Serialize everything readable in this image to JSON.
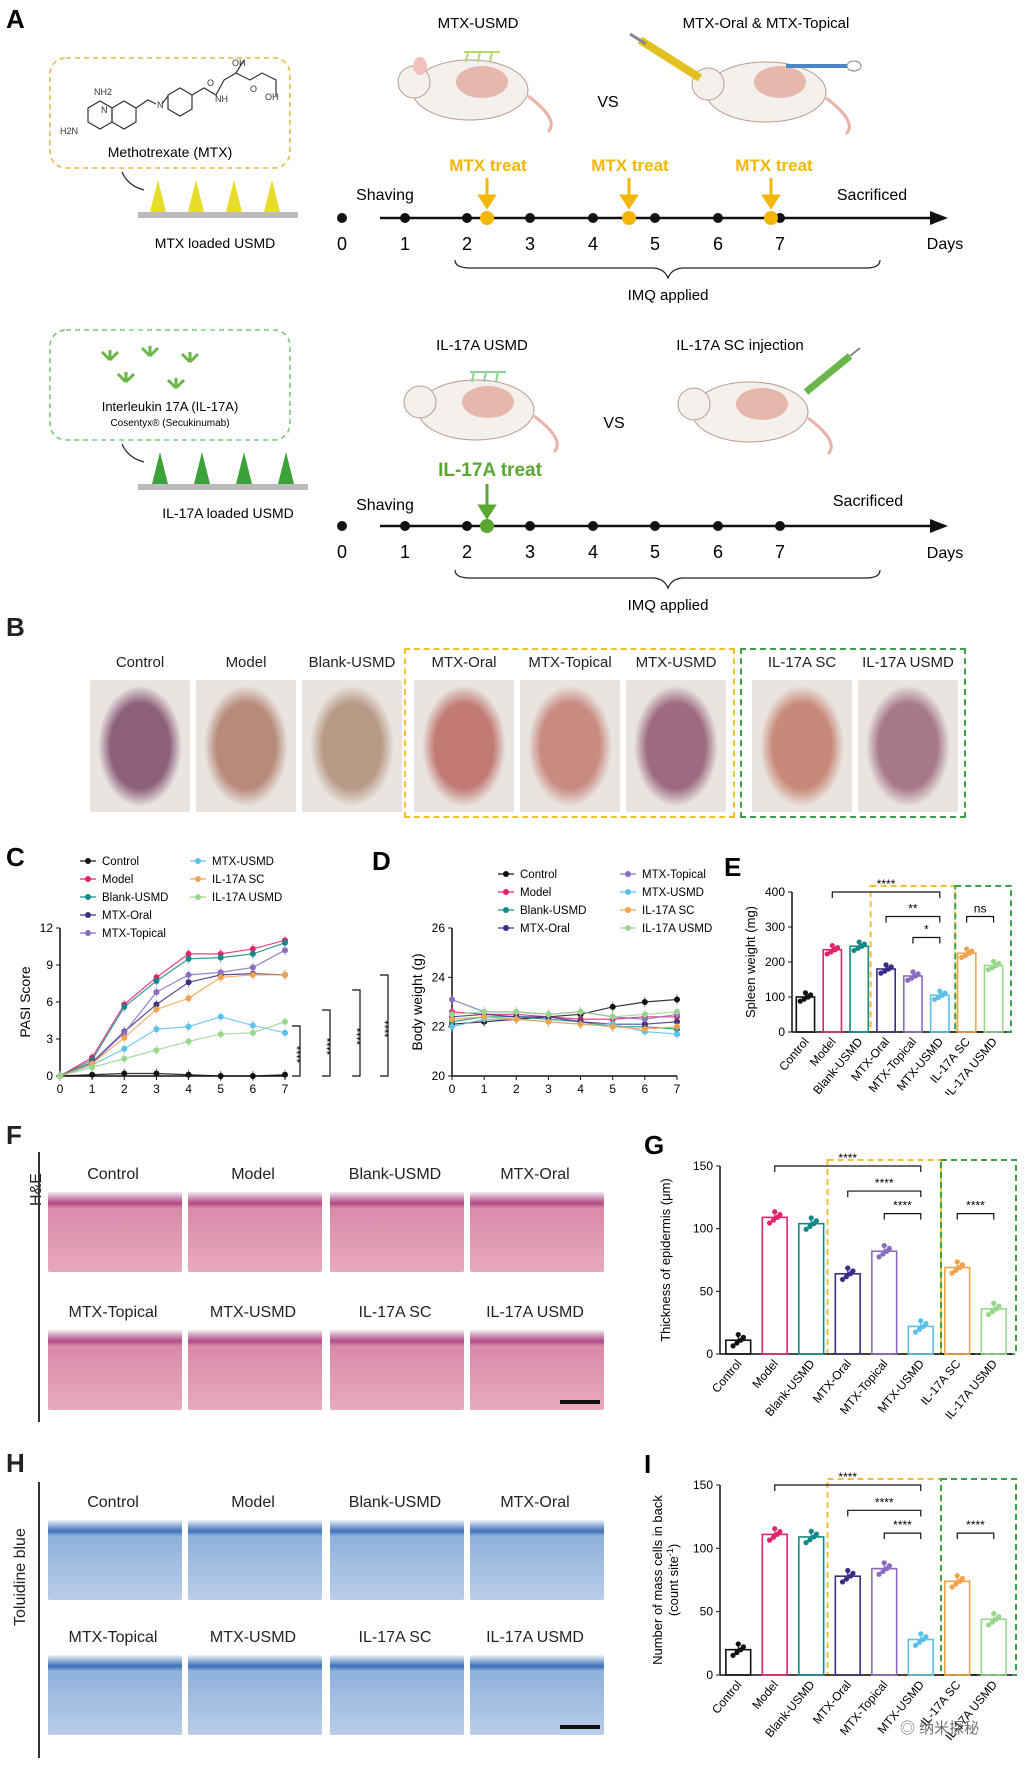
{
  "panels": {
    "A": "A",
    "B": "B",
    "C": "C",
    "D": "D",
    "E": "E",
    "F": "F",
    "G": "G",
    "H": "H",
    "I": "I"
  },
  "panelA": {
    "mtx_box_label": "Methotrexate (MTX)",
    "mtx_usmd_label": "MTX loaded USMD",
    "mtx_usmd_title": "MTX-USMD",
    "vs": "VS",
    "mtx_oral_topical_title": "MTX-Oral & MTX-Topical",
    "mtx_treat": "MTX treat",
    "shaving": "Shaving",
    "sacrificed": "Sacrificed",
    "days": "Days",
    "imq": "IMQ applied",
    "day_ticks": [
      "0",
      "1",
      "2",
      "3",
      "4",
      "5",
      "6",
      "7"
    ],
    "il17_box_label": "Interleukin 17A (IL-17A)",
    "il17_box_sub": "Cosentyx® (Secukinumab)",
    "il17_usmd_label": "IL-17A loaded USMD",
    "il17_usmd_title": "IL-17A USMD",
    "il17_sc_title": "IL-17A SC injection",
    "il17_treat": "IL-17A treat",
    "molecule_atoms": [
      "NH2",
      "N",
      "H2N",
      "O",
      "OH",
      "NH",
      "O",
      "N",
      "OH",
      "O"
    ]
  },
  "panelB": {
    "labels": [
      "Control",
      "Model",
      "Blank-USMD",
      "MTX-Oral",
      "MTX-Topical",
      "MTX-USMD",
      "IL-17A SC",
      "IL-17A USMD"
    ],
    "colors": {
      "yellow_box": "#f2c12e",
      "green_box": "#3aa34a"
    }
  },
  "colors": {
    "Control": "#111111",
    "Model": "#e2236c",
    "Blank-USMD": "#138a8a",
    "MTX-Oral": "#3d2c84",
    "MTX-Topical": "#8a6cc0",
    "MTX-USMD": "#59c1e8",
    "IL-17A SC": "#f2a24a",
    "IL-17A USMD": "#98d68c",
    "yellow": "#f2c12e",
    "green": "#3aa34a",
    "timeline_yellow": "#f2b705",
    "timeline_green": "#5aa832"
  },
  "legend_groups": [
    "Control",
    "Model",
    "Blank-USMD",
    "MTX-Oral",
    "MTX-Topical",
    "MTX-USMD",
    "IL-17A SC",
    "IL-17A USMD"
  ],
  "chart_data": [
    {
      "id": "C",
      "type": "line",
      "xlabel": "Day",
      "ylabel": "PASI Score",
      "x": [
        0,
        1,
        2,
        3,
        4,
        5,
        6,
        7
      ],
      "xticks": [
        "0",
        "1",
        "2",
        "3",
        "4",
        "5",
        "6",
        "7"
      ],
      "yticks": [
        "0",
        "3",
        "6",
        "9",
        "12"
      ],
      "ylim": [
        0,
        12
      ],
      "series": [
        {
          "name": "Control",
          "values": [
            0,
            0.1,
            0.2,
            0.2,
            0.1,
            0,
            0,
            0.1
          ]
        },
        {
          "name": "Model",
          "values": [
            0,
            1.5,
            5.8,
            8,
            9.9,
            9.9,
            10.3,
            11
          ]
        },
        {
          "name": "Blank-USMD",
          "values": [
            0,
            1.3,
            5.6,
            7.7,
            9.5,
            9.6,
            9.9,
            10.8
          ]
        },
        {
          "name": "MTX-Oral",
          "values": [
            0,
            1.1,
            3.6,
            5.8,
            7.6,
            8.2,
            8.3,
            8.2
          ]
        },
        {
          "name": "MTX-Topical",
          "values": [
            0,
            1.0,
            3.5,
            6.8,
            8.2,
            8.4,
            8.8,
            10.2
          ]
        },
        {
          "name": "MTX-USMD",
          "values": [
            0,
            0.9,
            2.2,
            3.8,
            4.0,
            4.8,
            4.1,
            3.5
          ]
        },
        {
          "name": "IL-17A SC",
          "values": [
            0,
            1.0,
            3.1,
            5.4,
            6.3,
            8.0,
            8.2,
            8.2
          ]
        },
        {
          "name": "IL-17A USMD",
          "values": [
            0,
            0.7,
            1.4,
            2.1,
            2.8,
            3.4,
            3.5,
            4.4
          ]
        }
      ],
      "significance": [
        "****",
        "****",
        "****",
        "****"
      ]
    },
    {
      "id": "D",
      "type": "line",
      "xlabel": "Day",
      "ylabel": "Body weight (g)",
      "x": [
        0,
        1,
        2,
        3,
        4,
        5,
        6,
        7
      ],
      "xticks": [
        "0",
        "1",
        "2",
        "3",
        "4",
        "5",
        "6",
        "7"
      ],
      "yticks": [
        "20",
        "22",
        "24",
        "26"
      ],
      "ylim": [
        20,
        26
      ],
      "series": [
        {
          "name": "Control",
          "values": [
            22.1,
            22.2,
            22.3,
            22.4,
            22.5,
            22.8,
            23.0,
            23.1
          ]
        },
        {
          "name": "Model",
          "values": [
            22.6,
            22.5,
            22.5,
            22.4,
            22.3,
            22.3,
            22.4,
            22.4
          ]
        },
        {
          "name": "Blank-USMD",
          "values": [
            22.2,
            22.4,
            22.4,
            22.3,
            22.2,
            22.0,
            22.0,
            21.9
          ]
        },
        {
          "name": "MTX-Oral",
          "values": [
            22.4,
            22.5,
            22.4,
            22.4,
            22.2,
            22.1,
            22.1,
            22.2
          ]
        },
        {
          "name": "MTX-Topical",
          "values": [
            23.1,
            22.6,
            22.6,
            22.5,
            22.6,
            22.4,
            22.3,
            22.5
          ]
        },
        {
          "name": "MTX-USMD",
          "values": [
            22.0,
            22.3,
            22.3,
            22.2,
            22.1,
            22.1,
            21.8,
            21.7
          ]
        },
        {
          "name": "IL-17A SC",
          "values": [
            22.3,
            22.4,
            22.3,
            22.2,
            22.1,
            22.0,
            21.9,
            22.0
          ]
        },
        {
          "name": "IL-17A USMD",
          "values": [
            22.5,
            22.6,
            22.6,
            22.5,
            22.6,
            22.4,
            22.5,
            22.6
          ]
        }
      ]
    },
    {
      "id": "E",
      "type": "bar",
      "ylabel": "Spleen weight (mg)",
      "categories": [
        "Control",
        "Model",
        "Blank-USMD",
        "MTX-Oral",
        "MTX-Topical",
        "MTX-USMD",
        "IL-17A SC",
        "IL-17A USMD"
      ],
      "values": [
        100,
        235,
        245,
        180,
        160,
        105,
        225,
        190
      ],
      "yticks": [
        "0",
        "100",
        "200",
        "300",
        "400"
      ],
      "ylim": [
        0,
        400
      ],
      "significance": [
        "****",
        "**",
        "*",
        "ns"
      ]
    },
    {
      "id": "G",
      "type": "bar",
      "ylabel": "Thickness of epidermis (μm)",
      "categories": [
        "Control",
        "Model",
        "Blank-USMD",
        "MTX-Oral",
        "MTX-Topical",
        "MTX-USMD",
        "IL-17A SC",
        "IL-17A USMD"
      ],
      "values": [
        11,
        109,
        104,
        64,
        82,
        22,
        69,
        36
      ],
      "yticks": [
        "0",
        "50",
        "100",
        "150"
      ],
      "ylim": [
        0,
        150
      ],
      "significance": [
        "****",
        "****",
        "****",
        "****"
      ]
    },
    {
      "id": "I",
      "type": "bar",
      "ylabel": "Number of mass cells in back",
      "ylabel2": "(count site",
      "ylabel2_sup": "-1",
      "ylabel2_end": ")",
      "categories": [
        "Control",
        "Model",
        "Blank-USMD",
        "MTX-Oral",
        "MTX-Topical",
        "MTX-USMD",
        "IL-17A SC",
        "IL-17A USMD"
      ],
      "tick_labels": [
        "Control",
        "Model",
        "Blank-USMD",
        "MTX-Oral",
        "MTX-Topical",
        "MTX-USMD",
        "IL-17A SC",
        "IL-17A USMD"
      ],
      "values": [
        20,
        111,
        109,
        78,
        84,
        28,
        74,
        44
      ],
      "yticks": [
        "0",
        "50",
        "100",
        "150"
      ],
      "ylim": [
        0,
        150
      ],
      "significance": [
        "****",
        "****",
        "****",
        "****"
      ]
    }
  ],
  "panelF": {
    "side_label": "H&E",
    "labels": [
      "Control",
      "Model",
      "Blank-USMD",
      "MTX-Oral",
      "MTX-Topical",
      "MTX-USMD",
      "IL-17A SC",
      "IL-17A USMD"
    ]
  },
  "panelH": {
    "side_label": "Toluidine blue",
    "labels": [
      "Control",
      "Model",
      "Blank-USMD",
      "MTX-Oral",
      "MTX-Topical",
      "MTX-USMD",
      "IL-17A SC",
      "IL-17A USMD"
    ]
  },
  "watermark": "纳米探秘"
}
